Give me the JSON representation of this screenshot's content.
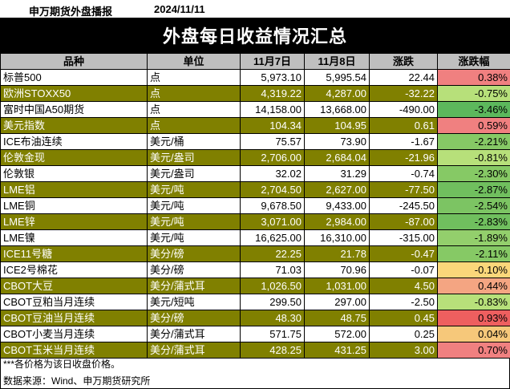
{
  "header": {
    "left": "申万期货外盘播报",
    "date": "2024/11/11"
  },
  "title": "外盘每日收益情况汇总",
  "columns": [
    "品种",
    "单位",
    "11月7日",
    "11月8日",
    "涨跌",
    "涨跌幅"
  ],
  "rows": [
    {
      "name": "标普500",
      "unit": "点",
      "d1": "5,973.10",
      "d2": "5,995.54",
      "chg": "22.44",
      "pct": "0.38%",
      "color": "#f08080",
      "olive": false
    },
    {
      "name": "欧洲STOXX50",
      "unit": "点",
      "d1": "4,319.22",
      "d2": "4,287.00",
      "chg": "-32.22",
      "pct": "-0.75%",
      "color": "#b7e07a",
      "olive": true
    },
    {
      "name": "富时中国A50期货",
      "unit": "点",
      "d1": "14,158.00",
      "d2": "13,668.00",
      "chg": "-490.00",
      "pct": "-3.46%",
      "color": "#5cb85c",
      "olive": false
    },
    {
      "name": "美元指数",
      "unit": "点",
      "d1": "104.34",
      "d2": "104.95",
      "chg": "0.61",
      "pct": "0.59%",
      "color": "#f08080",
      "olive": true
    },
    {
      "name": "ICE布油连续",
      "unit": "美元/桶",
      "d1": "75.57",
      "d2": "73.90",
      "chg": "-1.67",
      "pct": "-2.21%",
      "color": "#86c965",
      "olive": false
    },
    {
      "name": "伦敦金现",
      "unit": "美元/盎司",
      "d1": "2,706.00",
      "d2": "2,684.04",
      "chg": "-21.96",
      "pct": "-0.81%",
      "color": "#b7e07a",
      "olive": true
    },
    {
      "name": "伦敦银",
      "unit": "美元/盎司",
      "d1": "32.02",
      "d2": "31.29",
      "chg": "-0.74",
      "pct": "-2.30%",
      "color": "#86c965",
      "olive": false
    },
    {
      "name": "LME铝",
      "unit": "美元/吨",
      "d1": "2,704.50",
      "d2": "2,627.00",
      "chg": "-77.50",
      "pct": "-2.87%",
      "color": "#70bf5e",
      "olive": true
    },
    {
      "name": "LME铜",
      "unit": "美元/吨",
      "d1": "9,678.50",
      "d2": "9,433.00",
      "chg": "-245.50",
      "pct": "-2.54%",
      "color": "#7cc463",
      "olive": false
    },
    {
      "name": "LME锌",
      "unit": "美元/吨",
      "d1": "3,071.00",
      "d2": "2,984.00",
      "chg": "-87.00",
      "pct": "-2.83%",
      "color": "#70bf5e",
      "olive": true
    },
    {
      "name": "LME镍",
      "unit": "美元/吨",
      "d1": "16,625.00",
      "d2": "16,310.00",
      "chg": "-315.00",
      "pct": "-1.89%",
      "color": "#93cf6c",
      "olive": false
    },
    {
      "name": "ICE11号糖",
      "unit": "美分/磅",
      "d1": "22.25",
      "d2": "21.78",
      "chg": "-0.47",
      "pct": "-2.11%",
      "color": "#86c965",
      "olive": true
    },
    {
      "name": "ICE2号棉花",
      "unit": "美分/磅",
      "d1": "71.03",
      "d2": "70.96",
      "chg": "-0.07",
      "pct": "-0.10%",
      "color": "#fbd77a",
      "olive": false
    },
    {
      "name": "CBOT大豆",
      "unit": "美分/蒲式耳",
      "d1": "1,026.50",
      "d2": "1,031.00",
      "chg": "4.50",
      "pct": "0.44%",
      "color": "#f4a582",
      "olive": true
    },
    {
      "name": "CBOT豆粕当月连续",
      "unit": "美元/短吨",
      "d1": "299.50",
      "d2": "297.00",
      "chg": "-2.50",
      "pct": "-0.83%",
      "color": "#b7e07a",
      "olive": false
    },
    {
      "name": "CBOT豆油当月连续",
      "unit": "美分/磅",
      "d1": "48.30",
      "d2": "48.75",
      "chg": "0.45",
      "pct": "0.93%",
      "color": "#ee5f5f",
      "olive": true
    },
    {
      "name": "CBOT小麦当月连续",
      "unit": "美分/蒲式耳",
      "d1": "571.75",
      "d2": "572.00",
      "chg": "0.25",
      "pct": "0.04%",
      "color": "#f6c87a",
      "olive": false
    },
    {
      "name": "CBOT玉米当月连续",
      "unit": "美分/蒲式耳",
      "d1": "428.25",
      "d2": "431.25",
      "chg": "3.00",
      "pct": "0.70%",
      "color": "#f08080",
      "olive": true
    }
  ],
  "note": "***各价格为该日收盘价格。",
  "source": "数据来源：Wind、申万期货研究所"
}
